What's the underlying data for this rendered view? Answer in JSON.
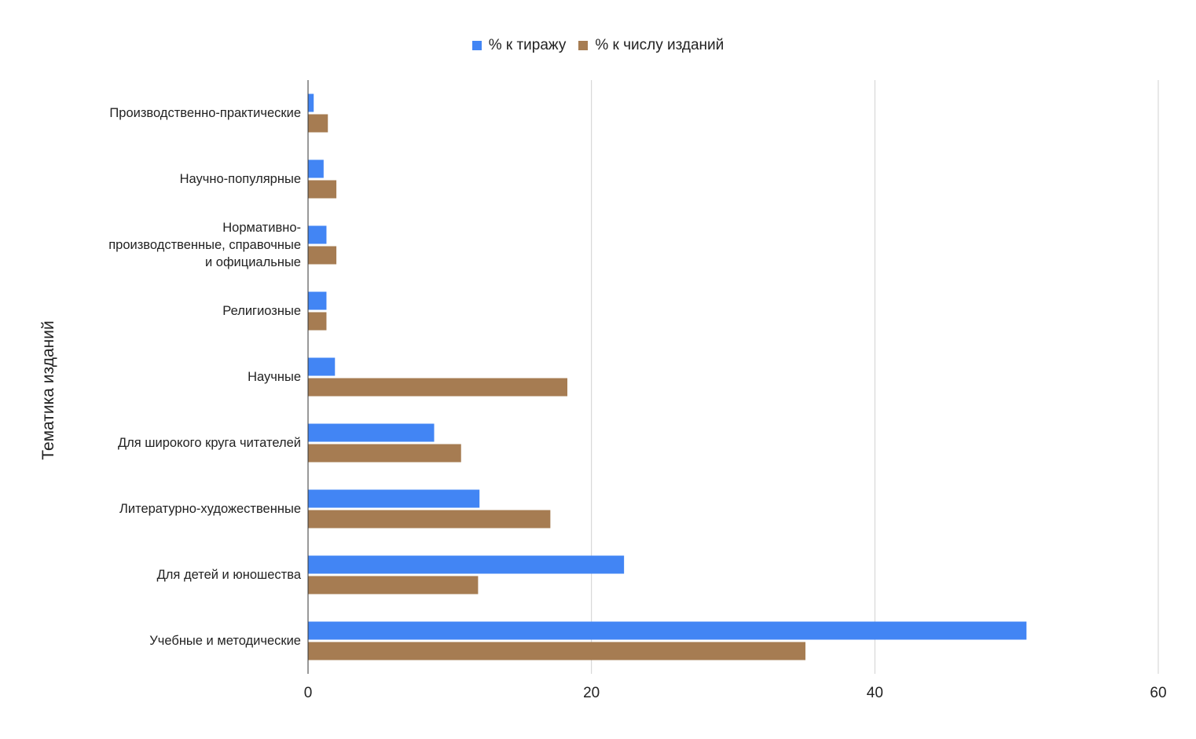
{
  "chart_data": {
    "type": "bar",
    "orientation": "horizontal",
    "title": "",
    "xlabel": "",
    "ylabel": "Тематика изданий",
    "categories": [
      "Производственно-практические",
      "Научно-популярные",
      "Нормативно-производственные, справочные и официальные",
      "Религиозные",
      "Научные",
      "Для широкого круга читателей",
      "Литературно-художественные",
      "Для детей и юношества",
      "Учебные и методические"
    ],
    "category_lines": [
      [
        "Производственно-практические"
      ],
      [
        "Научно-популярные"
      ],
      [
        "Нормативно-",
        "производственные, справочные",
        "и официальные"
      ],
      [
        "Религиозные"
      ],
      [
        "Научные"
      ],
      [
        "Для широкого круга читателей"
      ],
      [
        "Литературно-художественные"
      ],
      [
        "Для детей и юношества"
      ],
      [
        "Учебные и методические"
      ]
    ],
    "series": [
      {
        "name": "% к тиражу",
        "color": "#4285f4",
        "values": [
          0.4,
          1.1,
          1.3,
          1.3,
          1.9,
          8.9,
          12.1,
          22.3,
          50.7
        ]
      },
      {
        "name": "% к числу изданий",
        "color": "#a67c52",
        "values": [
          1.4,
          2.0,
          2.0,
          1.3,
          18.3,
          10.8,
          17.1,
          12.0,
          35.1
        ]
      }
    ],
    "xlim": [
      0,
      60
    ],
    "xticks": [
      "0",
      "20",
      "40",
      "60"
    ],
    "grid": true,
    "legend_position": "top"
  }
}
